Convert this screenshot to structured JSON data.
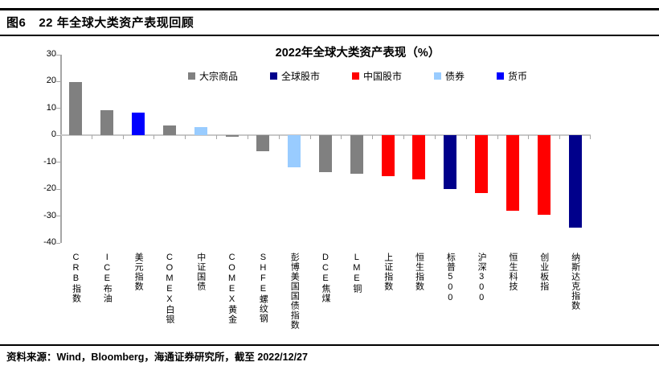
{
  "header": {
    "figure_label": "图6",
    "title": "22 年全球大类资产表现回顾"
  },
  "footer": {
    "source": "资料来源：Wind，Bloomberg，海通证券研究所，截至 2022/12/27"
  },
  "chart_data": {
    "type": "bar",
    "title": "2022年全球大类资产表现（%）",
    "ylim": [
      -40,
      30
    ],
    "yticks": [
      30,
      20,
      10,
      0,
      -10,
      -20,
      -30,
      -40
    ],
    "grid": false,
    "legend_position": "top",
    "legend": [
      {
        "label": "大宗商品",
        "color": "#808080"
      },
      {
        "label": "全球股市",
        "color": "#00008B"
      },
      {
        "label": "中国股市",
        "color": "#FF0000"
      },
      {
        "label": "债券",
        "color": "#99CCFF"
      },
      {
        "label": "货币",
        "color": "#0000FF"
      }
    ],
    "bars": [
      {
        "label": "CRB指数",
        "value": 19.9,
        "group": "大宗商品"
      },
      {
        "label": "ICE布油",
        "value": 9.4,
        "group": "大宗商品"
      },
      {
        "label": "美元指数",
        "value": 8.4,
        "group": "货币"
      },
      {
        "label": "COMEX白银",
        "value": 3.6,
        "group": "大宗商品"
      },
      {
        "label": "中证国债",
        "value": 3.0,
        "group": "债券"
      },
      {
        "label": "COMEX黄金",
        "value": -0.5,
        "group": "大宗商品"
      },
      {
        "label": "SHFE螺纹钢",
        "value": -5.8,
        "group": "大宗商品"
      },
      {
        "label": "彭博美国国债指数",
        "value": -11.8,
        "group": "债券"
      },
      {
        "label": "DCE焦煤",
        "value": -13.6,
        "group": "大宗商品"
      },
      {
        "label": "LME铜",
        "value": -14.4,
        "group": "大宗商品"
      },
      {
        "label": "上证指数",
        "value": -15.2,
        "group": "中国股市"
      },
      {
        "label": "恒生指数",
        "value": -16.3,
        "group": "中国股市"
      },
      {
        "label": "标普500",
        "value": -19.9,
        "group": "全球股市"
      },
      {
        "label": "沪深300",
        "value": -21.5,
        "group": "中国股市"
      },
      {
        "label": "恒生科技",
        "value": -27.9,
        "group": "中国股市"
      },
      {
        "label": "创业板指",
        "value": -29.4,
        "group": "中国股市"
      },
      {
        "label": "纳斯达克指数",
        "value": -34.3,
        "group": "全球股市"
      }
    ]
  }
}
